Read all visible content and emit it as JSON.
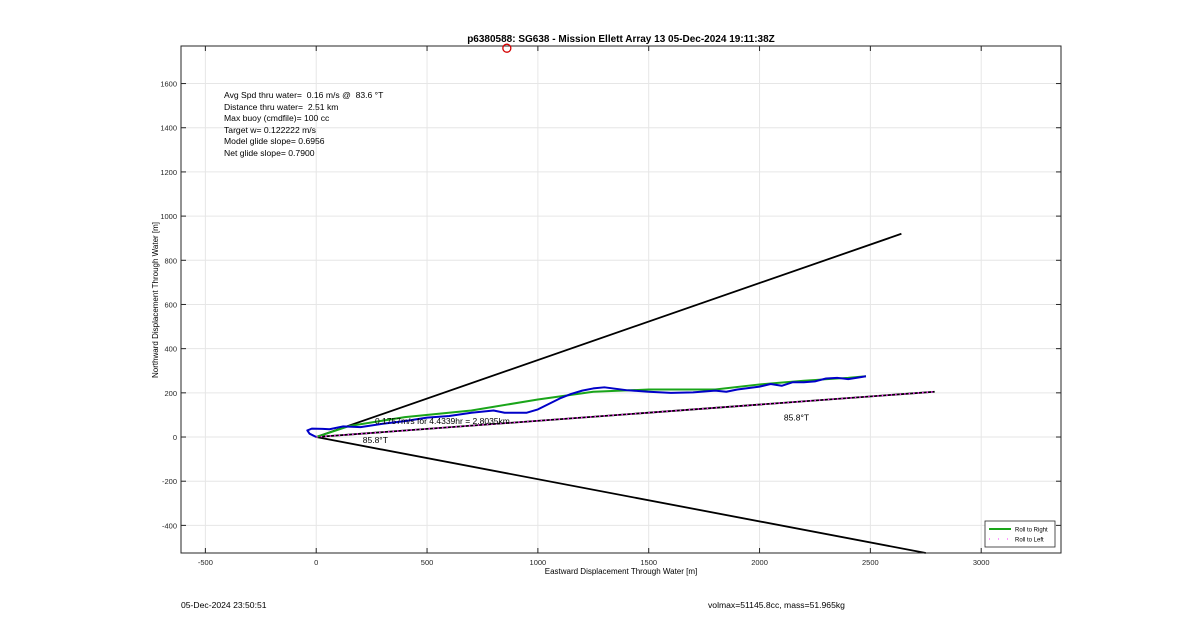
{
  "chart_data": {
    "type": "line",
    "title": "p6380588: SG638 - Mission Ellett Array 13 05-Dec-2024 19:11:38Z",
    "xlabel": "Eastward Displacement Through Water [m]",
    "ylabel": "Northward Displacement Through Water [m]",
    "xlim": [
      -610,
      3360
    ],
    "ylim": [
      -525,
      1770
    ],
    "xticks": [
      -500,
      0,
      500,
      1000,
      1500,
      2000,
      2500,
      3000
    ],
    "yticks": [
      -400,
      -200,
      0,
      200,
      400,
      600,
      800,
      1000,
      1200,
      1400,
      1600
    ],
    "grid": true,
    "legend_position": "bottom-right",
    "series": [
      {
        "name": "Roll to Right",
        "style": "solid",
        "color": "#1aa51a",
        "x": [
          0,
          150,
          400,
          700,
          1000,
          1250,
          1500,
          1800,
          2000,
          2200,
          2400,
          2480
        ],
        "y": [
          0,
          50,
          90,
          120,
          170,
          205,
          215,
          215,
          238,
          255,
          268,
          275
        ]
      },
      {
        "name": "Roll to Left",
        "style": "dotted",
        "color": "#ff33ff",
        "x": [
          0,
          2790
        ],
        "y": [
          0,
          205
        ]
      },
      {
        "name": "",
        "style": "solid",
        "color": "#0000c8",
        "x": [
          0,
          -30,
          -40,
          -20,
          30,
          60,
          120,
          200,
          300,
          400,
          500,
          600,
          700,
          800,
          850,
          950,
          1000,
          1050,
          1100,
          1150,
          1200,
          1250,
          1300,
          1400,
          1500,
          1600,
          1700,
          1800,
          1850,
          1900,
          2000,
          2050,
          2100,
          2150,
          2200,
          2250,
          2300,
          2350,
          2400,
          2450,
          2480
        ],
        "y": [
          0,
          15,
          30,
          38,
          37,
          35,
          48,
          45,
          60,
          72,
          88,
          95,
          110,
          120,
          110,
          110,
          125,
          150,
          175,
          195,
          210,
          220,
          225,
          212,
          205,
          200,
          202,
          210,
          205,
          215,
          228,
          240,
          232,
          248,
          248,
          252,
          265,
          268,
          262,
          270,
          275
        ]
      }
    ],
    "reference_lines": [
      {
        "color": "#000000",
        "x": [
          0,
          2640
        ],
        "y": [
          0,
          920
        ]
      },
      {
        "color": "#000000",
        "x": [
          0,
          2750
        ],
        "y": [
          0,
          -525
        ]
      },
      {
        "color": "#000000",
        "x": [
          0,
          2790
        ],
        "y": [
          0,
          205
        ]
      }
    ],
    "start_marker": {
      "x": 860,
      "y": 1760,
      "color": "#d40000"
    },
    "annotations": [
      {
        "text": "85.8°T",
        "x": 210,
        "y": -28
      },
      {
        "text": "85.8°T",
        "x": 2110,
        "y": 75
      },
      {
        "text": "0.1757m/s for 4.4339hr = 2.8035km",
        "x": 265,
        "y": 60
      }
    ],
    "stats_lines": [
      "Avg Spd thru water=  0.16 m/s @  83.6 °T",
      "Distance thru water=  2.51 km",
      "Max buoy (cmdfile)= 100 cc",
      "Target w= 0.122222 m/s",
      "Model glide slope= 0.6956",
      "Net glide slope= 0.7900"
    ]
  },
  "footer": {
    "timestamp": "05-Dec-2024 23:50:51",
    "mass_info": "volmax=51145.8cc, mass=51.965kg"
  }
}
